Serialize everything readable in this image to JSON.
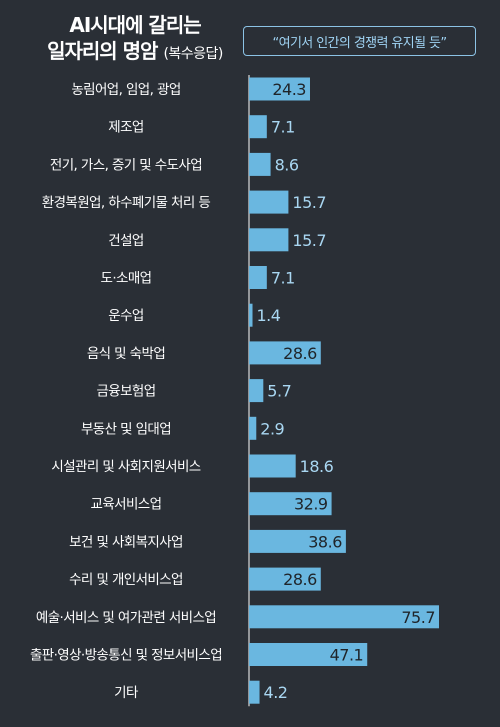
{
  "colors": {
    "background": "#2a2f36",
    "bar": "#6ab7e0",
    "value_text": "#a9d7f2",
    "axis": "#ffffff"
  },
  "header": {
    "title_line1": "AI시대에 갈리는",
    "title_line2": "일자리의 명암",
    "title_note": "(복수응답)",
    "quote": "“여기서 인간의 경쟁력 유지될 듯”"
  },
  "chart_data": {
    "type": "bar",
    "orientation": "horizontal",
    "title": "AI시대에 갈리는 일자리의 명암 (복수응답)",
    "annotation": "“여기서 인간의 경쟁력 유지될 듯”",
    "categories": [
      "농림어업, 임업, 광업",
      "제조업",
      "전기, 가스, 증기 및 수도사업",
      "환경복원업, 하수폐기물 처리 등",
      "건설업",
      "도·소매업",
      "운수업",
      "음식 및 숙박업",
      "금융보험업",
      "부동산 및 임대업",
      "시설관리 및 사회지원서비스",
      "교육서비스업",
      "보건 및 사회복지사업",
      "수리 및 개인서비스업",
      "예술·서비스 및 여가관련 서비스업",
      "출판·영상·방송통신 및 정보서비스업",
      "기타"
    ],
    "values": [
      24.3,
      7.1,
      8.6,
      15.7,
      15.7,
      7.1,
      1.4,
      28.6,
      5.7,
      2.9,
      18.6,
      32.9,
      38.6,
      28.6,
      75.7,
      47.1,
      4.2
    ],
    "value_labels": [
      "24.3",
      "7.1",
      "8.6",
      "15.7",
      "15.7",
      "7.1",
      "1.4",
      "28.6",
      "5.7",
      "2.9",
      "18.6",
      "32.9",
      "38.6",
      "28.6",
      "75.7",
      "47.1",
      "4.2"
    ],
    "xlim": [
      0,
      80
    ],
    "grid": false,
    "legend": "none"
  }
}
